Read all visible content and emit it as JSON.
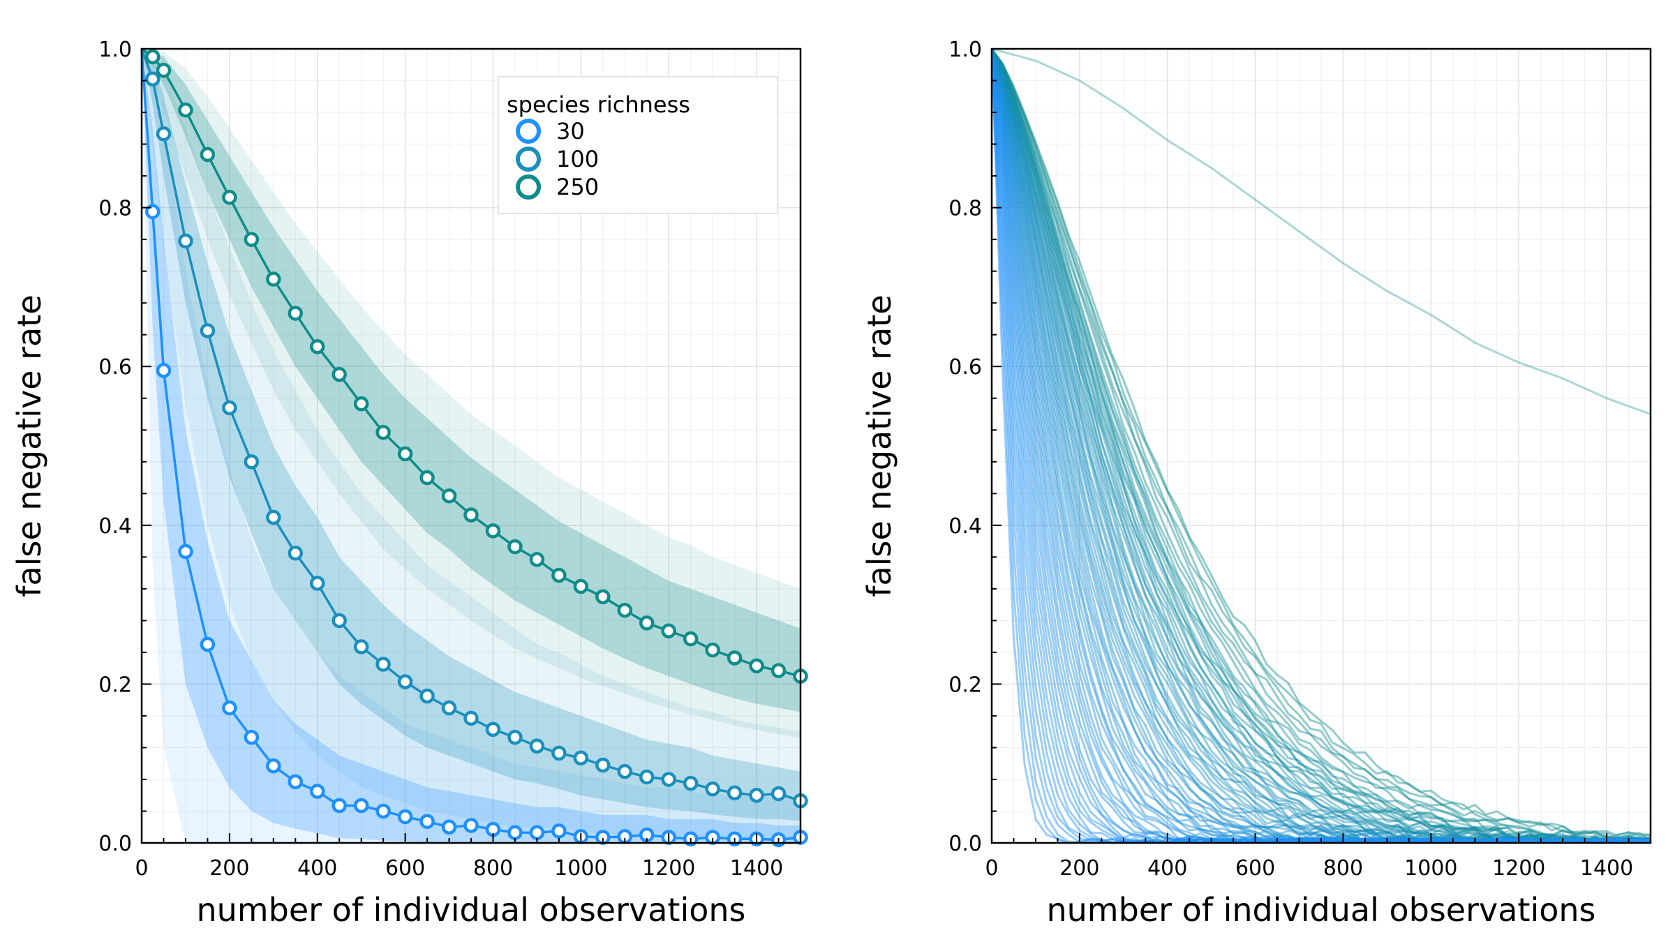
{
  "chart_data": [
    {
      "type": "line",
      "panel": "left",
      "xlabel": "number of individual observations",
      "ylabel": "false negative rate",
      "xlim": [
        0,
        1500
      ],
      "ylim": [
        0,
        1
      ],
      "x_ticks": [
        "0",
        "200",
        "400",
        "600",
        "800",
        "1000",
        "1200",
        "1400"
      ],
      "y_ticks": [
        "0.0",
        "0.2",
        "0.4",
        "0.6",
        "0.8",
        "1.0"
      ],
      "grid": true,
      "legend": {
        "title": "species richness",
        "position": "top-right"
      },
      "x": [
        0,
        25,
        50,
        100,
        150,
        200,
        250,
        300,
        350,
        400,
        450,
        500,
        550,
        600,
        650,
        700,
        750,
        800,
        850,
        900,
        950,
        1000,
        1050,
        1100,
        1150,
        1200,
        1250,
        1300,
        1350,
        1400,
        1450,
        1500
      ],
      "series": [
        {
          "name": "30",
          "color": "#1E90FF",
          "values": [
            1.0,
            0.795,
            0.595,
            0.367,
            0.25,
            0.17,
            0.133,
            0.097,
            0.077,
            0.065,
            0.047,
            0.047,
            0.04,
            0.033,
            0.027,
            0.02,
            0.022,
            0.017,
            0.013,
            0.013,
            0.015,
            0.008,
            0.007,
            0.008,
            0.01,
            0.007,
            0.005,
            0.007,
            0.005,
            0.005,
            0.004,
            0.007
          ],
          "band_inner_low": [
            1.0,
            0.65,
            0.43,
            0.2,
            0.12,
            0.07,
            0.04,
            0.025,
            0.018,
            0.012,
            0.006,
            0.005,
            0.003,
            0.002,
            0.0,
            0.0,
            0.0,
            0.0,
            0.0,
            0.0,
            0.0,
            0.0,
            0.0,
            0.0,
            0.0,
            0.0,
            0.0,
            0.0,
            0.0,
            0.0,
            0.0,
            0.0
          ],
          "band_inner_high": [
            1.0,
            0.9,
            0.76,
            0.52,
            0.38,
            0.28,
            0.23,
            0.18,
            0.15,
            0.13,
            0.11,
            0.1,
            0.09,
            0.08,
            0.07,
            0.065,
            0.06,
            0.055,
            0.05,
            0.045,
            0.045,
            0.04,
            0.035,
            0.035,
            0.035,
            0.03,
            0.03,
            0.03,
            0.025,
            0.025,
            0.022,
            0.022
          ],
          "band_outer_low": [
            1.0,
            0.35,
            0.12,
            0.0,
            0.0,
            0.0,
            0.0,
            0.0,
            0.0,
            0.0,
            0.0,
            0.0,
            0.0,
            0.0,
            0.0,
            0.0,
            0.0,
            0.0,
            0.0,
            0.0,
            0.0,
            0.0,
            0.0,
            0.0,
            0.0,
            0.0,
            0.0,
            0.0,
            0.0,
            0.0,
            0.0,
            0.0
          ],
          "band_outer_high": [
            1.0,
            0.97,
            0.9,
            0.72,
            0.58,
            0.47,
            0.38,
            0.32,
            0.28,
            0.24,
            0.21,
            0.19,
            0.17,
            0.15,
            0.14,
            0.13,
            0.12,
            0.11,
            0.1,
            0.095,
            0.09,
            0.085,
            0.08,
            0.075,
            0.07,
            0.07,
            0.065,
            0.06,
            0.06,
            0.06,
            0.055,
            0.055
          ]
        },
        {
          "name": "100",
          "color": "#1A8FBE",
          "values": [
            1.0,
            0.962,
            0.893,
            0.758,
            0.645,
            0.548,
            0.48,
            0.41,
            0.365,
            0.327,
            0.28,
            0.247,
            0.225,
            0.203,
            0.185,
            0.17,
            0.157,
            0.143,
            0.133,
            0.122,
            0.113,
            0.107,
            0.098,
            0.09,
            0.083,
            0.08,
            0.075,
            0.068,
            0.063,
            0.06,
            0.062,
            0.053
          ],
          "band_inner_low": [
            1.0,
            0.93,
            0.84,
            0.68,
            0.56,
            0.46,
            0.39,
            0.32,
            0.28,
            0.24,
            0.2,
            0.175,
            0.155,
            0.135,
            0.12,
            0.11,
            0.1,
            0.09,
            0.08,
            0.075,
            0.068,
            0.06,
            0.055,
            0.05,
            0.045,
            0.042,
            0.04,
            0.036,
            0.033,
            0.03,
            0.03,
            0.028
          ],
          "band_inner_high": [
            1.0,
            0.985,
            0.94,
            0.83,
            0.73,
            0.64,
            0.57,
            0.5,
            0.45,
            0.41,
            0.36,
            0.33,
            0.3,
            0.275,
            0.255,
            0.235,
            0.22,
            0.205,
            0.19,
            0.18,
            0.17,
            0.16,
            0.15,
            0.14,
            0.13,
            0.125,
            0.12,
            0.11,
            0.105,
            0.1,
            0.095,
            0.09
          ],
          "band_outer_low": [
            1.0,
            0.88,
            0.75,
            0.55,
            0.4,
            0.3,
            0.23,
            0.18,
            0.14,
            0.11,
            0.09,
            0.07,
            0.06,
            0.05,
            0.04,
            0.035,
            0.03,
            0.025,
            0.02,
            0.02,
            0.018,
            0.015,
            0.012,
            0.01,
            0.01,
            0.008,
            0.007,
            0.005,
            0.005,
            0.004,
            0.004,
            0.003
          ],
          "band_outer_high": [
            1.0,
            0.995,
            0.975,
            0.9,
            0.82,
            0.75,
            0.68,
            0.62,
            0.57,
            0.52,
            0.48,
            0.44,
            0.41,
            0.38,
            0.35,
            0.33,
            0.31,
            0.29,
            0.27,
            0.25,
            0.24,
            0.225,
            0.21,
            0.2,
            0.19,
            0.18,
            0.17,
            0.165,
            0.155,
            0.15,
            0.145,
            0.14
          ]
        },
        {
          "name": "250",
          "color": "#0E8C8A",
          "values": [
            1.0,
            0.99,
            0.973,
            0.923,
            0.867,
            0.813,
            0.76,
            0.71,
            0.667,
            0.625,
            0.59,
            0.553,
            0.517,
            0.49,
            0.46,
            0.437,
            0.413,
            0.393,
            0.373,
            0.357,
            0.337,
            0.323,
            0.31,
            0.293,
            0.277,
            0.267,
            0.257,
            0.243,
            0.233,
            0.223,
            0.217,
            0.21
          ],
          "band_inner_low": [
            1.0,
            0.98,
            0.955,
            0.89,
            0.82,
            0.76,
            0.7,
            0.65,
            0.6,
            0.56,
            0.52,
            0.48,
            0.45,
            0.42,
            0.39,
            0.37,
            0.345,
            0.325,
            0.305,
            0.29,
            0.275,
            0.26,
            0.245,
            0.232,
            0.22,
            0.21,
            0.2,
            0.19,
            0.182,
            0.175,
            0.17,
            0.165
          ],
          "band_inner_high": [
            1.0,
            0.997,
            0.99,
            0.955,
            0.91,
            0.865,
            0.82,
            0.775,
            0.735,
            0.695,
            0.66,
            0.625,
            0.59,
            0.56,
            0.535,
            0.51,
            0.485,
            0.465,
            0.445,
            0.425,
            0.405,
            0.39,
            0.375,
            0.36,
            0.345,
            0.33,
            0.32,
            0.31,
            0.3,
            0.29,
            0.28,
            0.27
          ],
          "band_outer_low": [
            1.0,
            0.96,
            0.92,
            0.84,
            0.76,
            0.69,
            0.63,
            0.57,
            0.52,
            0.48,
            0.44,
            0.405,
            0.37,
            0.345,
            0.32,
            0.3,
            0.28,
            0.262,
            0.245,
            0.232,
            0.22,
            0.208,
            0.198,
            0.188,
            0.178,
            0.17,
            0.162,
            0.155,
            0.148,
            0.142,
            0.137,
            0.132
          ],
          "band_outer_high": [
            1.0,
            0.999,
            0.996,
            0.975,
            0.94,
            0.9,
            0.86,
            0.82,
            0.78,
            0.745,
            0.71,
            0.675,
            0.645,
            0.615,
            0.59,
            0.565,
            0.54,
            0.52,
            0.5,
            0.48,
            0.46,
            0.445,
            0.43,
            0.415,
            0.4,
            0.385,
            0.375,
            0.36,
            0.35,
            0.34,
            0.33,
            0.32
          ]
        }
      ]
    },
    {
      "type": "line",
      "panel": "right",
      "xlabel": "number of individual observations",
      "ylabel": "false negative rate",
      "xlim": [
        0,
        1500
      ],
      "ylim": [
        0,
        1
      ],
      "x_ticks": [
        "0",
        "200",
        "400",
        "600",
        "800",
        "1000",
        "1200",
        "1400"
      ],
      "y_ticks": [
        "0.0",
        "0.2",
        "0.4",
        "0.6",
        "0.8",
        "1.0"
      ],
      "grid": true,
      "color_range": [
        "#1E90FF",
        "#0E8C8A"
      ],
      "x": [
        0,
        100,
        200,
        300,
        400,
        500,
        600,
        700,
        800,
        900,
        1000,
        1100,
        1200,
        1300,
        1400,
        1500
      ],
      "outlier_series": {
        "color": "#0E8C8A",
        "values": [
          1.0,
          0.985,
          0.96,
          0.925,
          0.885,
          0.85,
          0.81,
          0.77,
          0.73,
          0.695,
          0.665,
          0.63,
          0.605,
          0.585,
          0.56,
          0.54
        ]
      },
      "decay_scales": [
        40,
        45,
        50,
        55,
        60,
        65,
        70,
        75,
        80,
        85,
        90,
        95,
        100,
        105,
        110,
        115,
        120,
        125,
        130,
        135,
        140,
        145,
        150,
        155,
        160,
        165,
        170,
        175,
        180,
        185,
        190,
        195,
        200,
        205,
        210,
        215,
        220,
        225,
        230,
        235,
        240,
        245,
        250,
        255,
        260,
        265,
        270,
        275,
        280,
        285,
        290,
        295,
        300,
        305,
        310,
        315,
        320,
        325,
        330,
        335,
        340,
        345,
        350,
        355,
        360,
        365,
        370,
        375,
        380,
        385,
        390,
        395,
        400,
        410,
        420,
        430,
        440,
        450,
        460,
        470
      ]
    }
  ]
}
